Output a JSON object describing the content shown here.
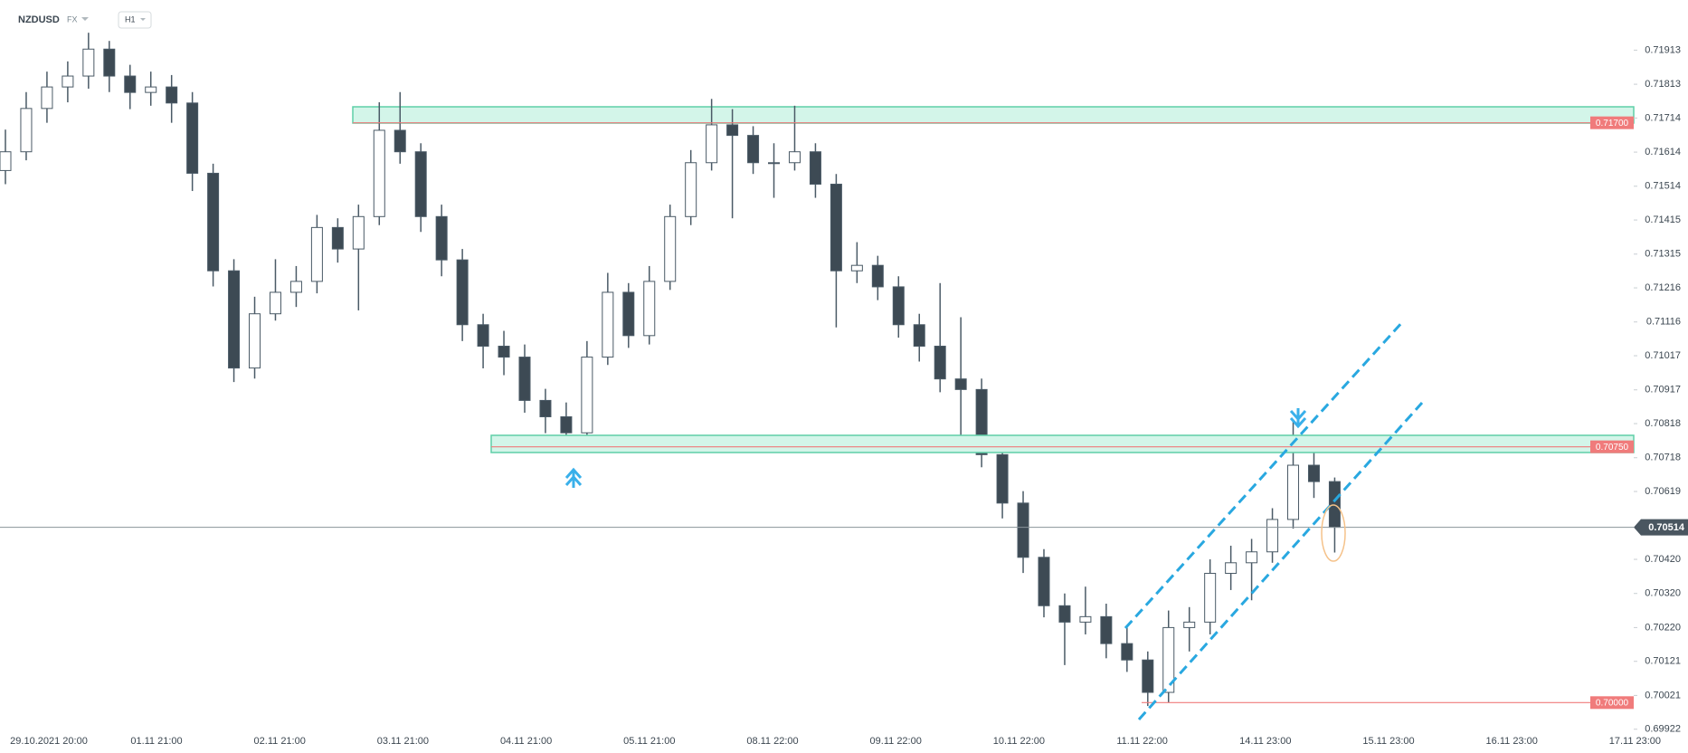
{
  "header": {
    "symbol": "NZDUSD",
    "market": "FX",
    "interval": "H1"
  },
  "chart_data": {
    "type": "candlestick",
    "x_labels": [
      "29.10.2021 20:00",
      "01.11 21:00",
      "02.11 21:00",
      "03.11 21:00",
      "04.11 21:00",
      "05.11 21:00",
      "08.11 22:00",
      "09.11 22:00",
      "10.11 22:00",
      "11.11 22:00",
      "14.11 23:00",
      "15.11 23:00",
      "16.11 23:00",
      "17.11 23:00"
    ],
    "up_color": "#ffffff",
    "down_color": "#3d4a54",
    "wick_color": "#4a5a66",
    "open": [
      0.7156,
      0.71615,
      0.71742,
      0.71805,
      0.71837,
      0.71916,
      0.71837,
      0.71789,
      0.71805,
      0.71758,
      0.71552,
      0.71266,
      0.70981,
      0.7114,
      0.71203,
      0.71235,
      0.71393,
      0.7133,
      0.71425,
      0.71678,
      0.71615,
      0.71425,
      0.71298,
      0.71108,
      0.71045,
      0.71013,
      0.70886,
      0.70838,
      0.70791,
      0.71013,
      0.71203,
      0.71076,
      0.71235,
      0.71425,
      0.71583,
      0.71694,
      0.71663,
      0.71583,
      0.71583,
      0.71615,
      0.7152,
      0.71266,
      0.71282,
      0.71219,
      0.71108,
      0.71045,
      0.70949,
      0.70918,
      0.70727,
      0.70585,
      0.70426,
      0.70284,
      0.70236,
      0.70252,
      0.70173,
      0.70125,
      0.7003,
      0.7022,
      0.70236,
      0.70379,
      0.7041,
      0.70442,
      0.70537,
      0.70696,
      0.70648
    ],
    "high": [
      0.7168,
      0.7179,
      0.7185,
      0.7188,
      0.71964,
      0.7194,
      0.7187,
      0.7185,
      0.7184,
      0.7179,
      0.7158,
      0.713,
      0.7119,
      0.713,
      0.7128,
      0.7143,
      0.7142,
      0.7146,
      0.7176,
      0.7179,
      0.7164,
      0.7146,
      0.7133,
      0.7114,
      0.7109,
      0.7105,
      0.7092,
      0.7088,
      0.7106,
      0.7126,
      0.7123,
      0.7128,
      0.7146,
      0.7162,
      0.7177,
      0.7174,
      0.7169,
      0.7164,
      0.7175,
      0.7164,
      0.7155,
      0.7135,
      0.7131,
      0.7125,
      0.7114,
      0.7123,
      0.7113,
      0.7095,
      0.7076,
      0.7062,
      0.7045,
      0.7032,
      0.7034,
      0.7029,
      0.7022,
      0.7015,
      0.7027,
      0.7028,
      0.7042,
      0.7046,
      0.7048,
      0.7057,
      0.7083,
      0.7076,
      0.7066
    ],
    "low": [
      0.7152,
      0.7159,
      0.717,
      0.7176,
      0.718,
      0.7179,
      0.7174,
      0.7175,
      0.717,
      0.715,
      0.7122,
      0.7094,
      0.7095,
      0.7112,
      0.7116,
      0.712,
      0.7129,
      0.7115,
      0.714,
      0.7158,
      0.7138,
      0.7125,
      0.7106,
      0.7098,
      0.7096,
      0.7085,
      0.7079,
      0.7074,
      0.7077,
      0.7099,
      0.7104,
      0.7105,
      0.7121,
      0.714,
      0.7156,
      0.7142,
      0.7155,
      0.7148,
      0.7156,
      0.7148,
      0.711,
      0.7123,
      0.7118,
      0.7107,
      0.71,
      0.7091,
      0.7078,
      0.7069,
      0.7054,
      0.7038,
      0.7025,
      0.7011,
      0.702,
      0.7013,
      0.7009,
      0.6999,
      0.7,
      0.7015,
      0.702,
      0.7033,
      0.703,
      0.7041,
      0.7051,
      0.706,
      0.7044
    ],
    "close": [
      0.71615,
      0.71742,
      0.71805,
      0.71837,
      0.71916,
      0.71837,
      0.71789,
      0.71805,
      0.71758,
      0.71552,
      0.71266,
      0.70981,
      0.7114,
      0.71203,
      0.71235,
      0.71393,
      0.7133,
      0.71425,
      0.71678,
      0.71615,
      0.71425,
      0.71298,
      0.71108,
      0.71045,
      0.71013,
      0.70886,
      0.70838,
      0.70791,
      0.71013,
      0.71203,
      0.71076,
      0.71235,
      0.71425,
      0.71583,
      0.71694,
      0.71663,
      0.71583,
      0.71583,
      0.71615,
      0.7152,
      0.71266,
      0.71282,
      0.71219,
      0.71108,
      0.71045,
      0.70949,
      0.70918,
      0.70727,
      0.70585,
      0.70426,
      0.70284,
      0.70236,
      0.70252,
      0.70173,
      0.70125,
      0.7003,
      0.7022,
      0.70236,
      0.70379,
      0.7041,
      0.70442,
      0.70537,
      0.70696,
      0.70648,
      0.70514
    ],
    "ylim": [
      0.699,
      0.7206
    ],
    "yticks": [
      0.71913,
      0.71813,
      0.71714,
      0.71614,
      0.71514,
      0.71415,
      0.71315,
      0.71216,
      0.71116,
      0.71017,
      0.70917,
      0.70818,
      0.70718,
      0.70619,
      {
        "value": 0.7042,
        "label": "0.70420"
      },
      {
        "value": 0.7032,
        "label": "0.70320"
      },
      {
        "value": 0.7022,
        "label": "0.70220"
      },
      0.70121,
      0.70021,
      0.69922
    ],
    "levels": [
      {
        "value": 0.717,
        "label": "0.71700",
        "color": "#f07b7b"
      },
      {
        "value": 0.7075,
        "label": "0.70750",
        "color": "#f07b7b"
      },
      {
        "value": 0.7,
        "label": "0.70000",
        "color": "#f07b7b"
      }
    ],
    "current_price": 0.70514
  }
}
